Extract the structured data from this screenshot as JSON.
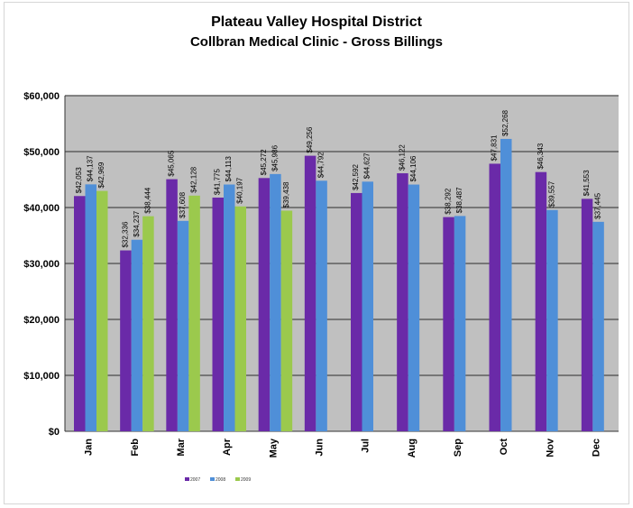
{
  "chart_data": {
    "type": "bar",
    "title": "Plateau Valley Hospital District",
    "subtitle": "Collbran Medical Clinic - Gross Billings",
    "categories": [
      "Jan",
      "Feb",
      "Mar",
      "Apr",
      "May",
      "Jun",
      "Jul",
      "Aug",
      "Sep",
      "Oct",
      "Nov",
      "Dec"
    ],
    "series": [
      {
        "name": "2007",
        "color": "#6a2aa8",
        "values": [
          42053,
          32336,
          45065,
          41775,
          45272,
          49256,
          42592,
          46122,
          38292,
          47831,
          46343,
          41553
        ],
        "labels": [
          "$42,053",
          "$32,336",
          "$45,065",
          "$41,775",
          "$45,272",
          "$49,256",
          "$42,592",
          "$46,122",
          "$38,292",
          "$47,831",
          "$46,343",
          "$41,553"
        ]
      },
      {
        "name": "2008",
        "color": "#4f8fd8",
        "values": [
          44137,
          34237,
          37608,
          44113,
          45986,
          44792,
          44627,
          44106,
          38487,
          52268,
          39557,
          37445
        ],
        "labels": [
          "$44,137",
          "$34,237",
          "$37,608",
          "$44,113",
          "$45,986",
          "$44,792",
          "$44,627",
          "$44,106",
          "$38,487",
          "$52,268",
          "$39,557",
          "$37,445"
        ]
      },
      {
        "name": "2009",
        "color": "#9bc94d",
        "values": [
          42969,
          38444,
          42128,
          40197,
          39438,
          null,
          null,
          null,
          null,
          null,
          null,
          null
        ],
        "labels": [
          "$42,969",
          "$38,444",
          "$42,128",
          "$40,197",
          "$39,438",
          "",
          "",
          "",
          "",
          "",
          "",
          ""
        ]
      }
    ],
    "y_ticks": [
      "$0",
      "$10,000",
      "$20,000",
      "$30,000",
      "$40,000",
      "$50,000",
      "$60,000"
    ],
    "ylim": [
      0,
      60000
    ],
    "grid": true,
    "legend_position": "bottom"
  }
}
